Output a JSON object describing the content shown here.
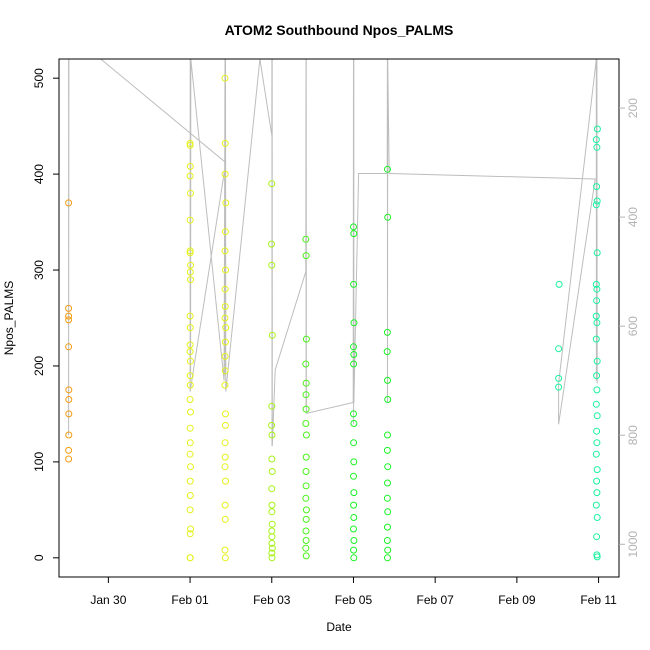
{
  "chart_data": {
    "type": "scatter",
    "title": "ATOM2 Southbound Npos_PALMS",
    "xlabel": "Date",
    "ylabel": "Npos_PALMS",
    "x_is_date": true,
    "xlim": [
      "2017-01-28T19:00",
      "2017-02-11T12:00"
    ],
    "ylim": [
      -20,
      520
    ],
    "x_ticks": [
      {
        "value": "2017-01-30",
        "label": "Jan 30"
      },
      {
        "value": "2017-02-01",
        "label": "Feb 01"
      },
      {
        "value": "2017-02-03",
        "label": "Feb 03"
      },
      {
        "value": "2017-02-05",
        "label": "Feb 05"
      },
      {
        "value": "2017-02-07",
        "label": "Feb 07"
      },
      {
        "value": "2017-02-09",
        "label": "Feb 09"
      },
      {
        "value": "2017-02-11",
        "label": "Feb 11"
      }
    ],
    "y_ticks": [
      0,
      100,
      200,
      300,
      400,
      500
    ],
    "secondary_axis": {
      "ylim": [
        1060,
        110
      ],
      "ticks": [
        200,
        400,
        600,
        800,
        1000
      ],
      "color": "#b3b3b3"
    },
    "series": [
      {
        "color": "#f39c12",
        "points": [
          [
            "2017-01-29T00:40",
            370
          ],
          [
            "2017-01-29T00:40",
            260
          ],
          [
            "2017-01-29T00:40",
            252
          ],
          [
            "2017-01-29T00:40",
            248
          ],
          [
            "2017-01-29T00:40",
            220
          ],
          [
            "2017-01-29T00:45",
            175
          ],
          [
            "2017-01-29T00:45",
            165
          ],
          [
            "2017-01-29T00:45",
            150
          ],
          [
            "2017-01-29T00:45",
            128
          ],
          [
            "2017-01-29T00:40",
            112
          ],
          [
            "2017-01-29T00:40",
            103
          ]
        ]
      },
      {
        "color": "#e4f21a",
        "points": [
          [
            "2017-02-01T00:00",
            432
          ],
          [
            "2017-02-01T00:05",
            430
          ],
          [
            "2017-02-01T00:10",
            408
          ],
          [
            "2017-02-01T00:00",
            398
          ],
          [
            "2017-02-01T00:15",
            380
          ],
          [
            "2017-02-01T00:05",
            352
          ],
          [
            "2017-02-01T00:10",
            320
          ],
          [
            "2017-02-01T00:00",
            318
          ],
          [
            "2017-02-01T00:20",
            305
          ],
          [
            "2017-02-01T00:10",
            298
          ],
          [
            "2017-02-01T00:15",
            290
          ],
          [
            "2017-02-01T00:00",
            252
          ],
          [
            "2017-02-01T00:10",
            240
          ],
          [
            "2017-02-01T00:05",
            222
          ],
          [
            "2017-02-01T00:00",
            215
          ],
          [
            "2017-02-01T00:15",
            205
          ],
          [
            "2017-02-01T00:05",
            190
          ],
          [
            "2017-02-01T00:10",
            180
          ],
          [
            "2017-02-01T00:00",
            165
          ],
          [
            "2017-02-01T00:15",
            152
          ],
          [
            "2017-02-01T00:05",
            135
          ],
          [
            "2017-02-01T00:10",
            120
          ],
          [
            "2017-02-01T00:00",
            108
          ],
          [
            "2017-02-01T00:15",
            95
          ],
          [
            "2017-02-01T00:05",
            80
          ],
          [
            "2017-02-01T00:10",
            65
          ],
          [
            "2017-02-01T00:00",
            50
          ],
          [
            "2017-02-01T00:15",
            30
          ],
          [
            "2017-02-01T00:05",
            25
          ],
          [
            "2017-02-01T00:00",
            0
          ],
          [
            "2017-02-01T00:10",
            0
          ],
          [
            "2017-02-01T20:30",
            500
          ],
          [
            "2017-02-01T20:40",
            432
          ],
          [
            "2017-02-01T20:35",
            400
          ],
          [
            "2017-02-01T21:00",
            370
          ],
          [
            "2017-02-01T20:45",
            340
          ],
          [
            "2017-02-01T20:30",
            320
          ],
          [
            "2017-02-01T20:50",
            300
          ],
          [
            "2017-02-01T20:35",
            280
          ],
          [
            "2017-02-01T20:40",
            262
          ],
          [
            "2017-02-01T20:30",
            250
          ],
          [
            "2017-02-01T20:55",
            240
          ],
          [
            "2017-02-01T20:45",
            225
          ],
          [
            "2017-02-01T20:35",
            210
          ],
          [
            "2017-02-01T20:40",
            195
          ],
          [
            "2017-02-01T20:30",
            180
          ],
          [
            "2017-02-01T20:50",
            150
          ],
          [
            "2017-02-01T20:45",
            138
          ],
          [
            "2017-02-01T20:35",
            120
          ],
          [
            "2017-02-01T20:40",
            105
          ],
          [
            "2017-02-01T20:30",
            95
          ],
          [
            "2017-02-01T20:50",
            80
          ],
          [
            "2017-02-01T20:35",
            55
          ],
          [
            "2017-02-01T20:40",
            40
          ],
          [
            "2017-02-01T20:30",
            8
          ],
          [
            "2017-02-01T20:45",
            0
          ]
        ]
      },
      {
        "color": "#a6f21a",
        "points": [
          [
            "2017-02-03T00:00",
            390
          ],
          [
            "2017-02-02T23:50",
            327
          ],
          [
            "2017-02-03T00:00",
            305
          ],
          [
            "2017-02-03T00:20",
            232
          ],
          [
            "2017-02-03T00:00",
            158
          ],
          [
            "2017-02-02T23:55",
            138
          ],
          [
            "2017-02-03T00:10",
            128
          ],
          [
            "2017-02-03T00:05",
            103
          ],
          [
            "2017-02-03T00:15",
            90
          ],
          [
            "2017-02-03T00:00",
            72
          ],
          [
            "2017-02-03T00:10",
            55
          ],
          [
            "2017-02-03T00:05",
            48
          ],
          [
            "2017-02-03T00:15",
            35
          ],
          [
            "2017-02-03T00:00",
            28
          ],
          [
            "2017-02-03T00:10",
            22
          ],
          [
            "2017-02-03T00:05",
            15
          ],
          [
            "2017-02-03T00:20",
            10
          ],
          [
            "2017-02-03T00:00",
            5
          ],
          [
            "2017-02-03T00:10",
            0
          ]
        ]
      },
      {
        "color": "#4cf21a",
        "points": [
          [
            "2017-02-03T20:00",
            332
          ],
          [
            "2017-02-03T20:10",
            315
          ],
          [
            "2017-02-03T20:20",
            228
          ],
          [
            "2017-02-03T20:00",
            202
          ],
          [
            "2017-02-03T20:15",
            182
          ],
          [
            "2017-02-03T20:05",
            170
          ],
          [
            "2017-02-03T20:10",
            155
          ],
          [
            "2017-02-03T20:00",
            140
          ],
          [
            "2017-02-03T20:20",
            128
          ],
          [
            "2017-02-03T20:15",
            105
          ],
          [
            "2017-02-03T20:05",
            90
          ],
          [
            "2017-02-03T20:10",
            75
          ],
          [
            "2017-02-03T20:00",
            62
          ],
          [
            "2017-02-03T20:20",
            50
          ],
          [
            "2017-02-03T20:15",
            40
          ],
          [
            "2017-02-03T20:05",
            28
          ],
          [
            "2017-02-03T20:10",
            18
          ],
          [
            "2017-02-03T20:00",
            10
          ],
          [
            "2017-02-03T20:15",
            2
          ]
        ]
      },
      {
        "color": "#1af226",
        "points": [
          [
            "2017-02-05T00:00",
            345
          ],
          [
            "2017-02-05T00:10",
            338
          ],
          [
            "2017-02-05T00:05",
            285
          ],
          [
            "2017-02-05T00:20",
            245
          ],
          [
            "2017-02-05T00:00",
            220
          ],
          [
            "2017-02-05T00:10",
            212
          ],
          [
            "2017-02-05T00:05",
            202
          ],
          [
            "2017-02-05T00:00",
            150
          ],
          [
            "2017-02-05T00:15",
            140
          ],
          [
            "2017-02-05T00:05",
            120
          ],
          [
            "2017-02-05T00:10",
            100
          ],
          [
            "2017-02-05T00:00",
            85
          ],
          [
            "2017-02-05T00:15",
            68
          ],
          [
            "2017-02-05T00:05",
            55
          ],
          [
            "2017-02-05T00:10",
            42
          ],
          [
            "2017-02-05T00:00",
            30
          ],
          [
            "2017-02-05T00:15",
            18
          ],
          [
            "2017-02-05T00:05",
            8
          ],
          [
            "2017-02-05T00:10",
            0
          ],
          [
            "2017-02-05T20:00",
            405
          ],
          [
            "2017-02-05T20:05",
            355
          ],
          [
            "2017-02-05T19:55",
            235
          ],
          [
            "2017-02-05T19:50",
            215
          ],
          [
            "2017-02-05T20:00",
            185
          ],
          [
            "2017-02-05T20:05",
            165
          ],
          [
            "2017-02-05T20:00",
            128
          ],
          [
            "2017-02-05T19:55",
            112
          ],
          [
            "2017-02-05T20:05",
            95
          ],
          [
            "2017-02-05T20:00",
            78
          ],
          [
            "2017-02-05T19:55",
            62
          ],
          [
            "2017-02-05T20:05",
            48
          ],
          [
            "2017-02-05T20:00",
            32
          ],
          [
            "2017-02-05T19:55",
            18
          ],
          [
            "2017-02-05T20:05",
            8
          ],
          [
            "2017-02-05T20:00",
            0
          ]
        ]
      },
      {
        "color": "#1af2a0",
        "points": [
          [
            "2017-02-10T00:50",
            285
          ],
          [
            "2017-02-10T00:30",
            218
          ],
          [
            "2017-02-10T00:30",
            187
          ],
          [
            "2017-02-10T00:30",
            178
          ],
          [
            "2017-02-10T22:40",
            436
          ],
          [
            "2017-02-10T23:20",
            447
          ],
          [
            "2017-02-10T23:00",
            428
          ],
          [
            "2017-02-10T22:50",
            387
          ],
          [
            "2017-02-10T23:10",
            372
          ],
          [
            "2017-02-10T22:40",
            368
          ],
          [
            "2017-02-10T23:10",
            318
          ],
          [
            "2017-02-10T22:40",
            285
          ],
          [
            "2017-02-10T23:00",
            280
          ],
          [
            "2017-02-10T22:50",
            268
          ],
          [
            "2017-02-10T22:40",
            252
          ],
          [
            "2017-02-10T23:00",
            245
          ],
          [
            "2017-02-10T22:40",
            228
          ],
          [
            "2017-02-10T23:10",
            205
          ],
          [
            "2017-02-10T22:50",
            190
          ],
          [
            "2017-02-10T23:00",
            175
          ],
          [
            "2017-02-10T22:40",
            160
          ],
          [
            "2017-02-10T23:10",
            148
          ],
          [
            "2017-02-10T22:50",
            132
          ],
          [
            "2017-02-10T23:00",
            120
          ],
          [
            "2017-02-10T22:40",
            108
          ],
          [
            "2017-02-10T23:10",
            92
          ],
          [
            "2017-02-10T22:50",
            80
          ],
          [
            "2017-02-10T23:00",
            68
          ],
          [
            "2017-02-10T22:40",
            55
          ],
          [
            "2017-02-10T23:10",
            42
          ],
          [
            "2017-02-10T22:50",
            22
          ],
          [
            "2017-02-10T23:00",
            3
          ],
          [
            "2017-02-10T23:10",
            1
          ]
        ]
      }
    ],
    "track_line": {
      "color": "#bdbdbd",
      "axis": "secondary",
      "points": [
        [
          "2017-01-29T00:40",
          110
        ],
        [
          "2017-01-29T00:40",
          800
        ],
        [
          "2017-01-29T00:50",
          110
        ],
        [
          "2017-01-29T19:30",
          110
        ],
        [
          "2017-02-01T21:00",
          300
        ],
        [
          "2017-02-01T00:00",
          720
        ],
        [
          "2017-02-01T00:05",
          110
        ],
        [
          "2017-02-01T00:10",
          700
        ],
        [
          "2017-02-01T00:15",
          110
        ],
        [
          "2017-02-01T00:20",
          690
        ],
        [
          "2017-02-01T00:25",
          110
        ],
        [
          "2017-02-01T20:00",
          700
        ],
        [
          "2017-02-01T20:30",
          110
        ],
        [
          "2017-02-01T20:40",
          690
        ],
        [
          "2017-02-01T20:50",
          110
        ],
        [
          "2017-02-01T21:00",
          720
        ],
        [
          "2017-02-02T17:00",
          110
        ],
        [
          "2017-02-03T00:00",
          250
        ],
        [
          "2017-02-03T00:05",
          110
        ],
        [
          "2017-02-03T00:10",
          820
        ],
        [
          "2017-02-03T00:15",
          110
        ],
        [
          "2017-02-03T00:20",
          820
        ],
        [
          "2017-02-03T02:00",
          680
        ],
        [
          "2017-02-03T20:00",
          500
        ],
        [
          "2017-02-03T20:05",
          110
        ],
        [
          "2017-02-03T20:10",
          750
        ],
        [
          "2017-02-03T20:15",
          110
        ],
        [
          "2017-02-03T20:20",
          760
        ],
        [
          "2017-02-04T23:50",
          740
        ],
        [
          "2017-02-05T00:00",
          110
        ],
        [
          "2017-02-05T00:05",
          780
        ],
        [
          "2017-02-05T00:10",
          110
        ],
        [
          "2017-02-05T00:15",
          740
        ],
        [
          "2017-02-05T03:00",
          320
        ],
        [
          "2017-02-05T19:50",
          320
        ],
        [
          "2017-02-05T19:55",
          110
        ],
        [
          "2017-02-05T20:00",
          740
        ],
        [
          "2017-02-05T20:05",
          110
        ],
        [
          "2017-02-05T21:00",
          320
        ],
        [
          "2017-02-10T22:00",
          330
        ],
        [
          "2017-02-10T00:30",
          780
        ],
        [
          "2017-02-10T00:30",
          705
        ],
        [
          "2017-02-10T22:40",
          110
        ],
        [
          "2017-02-10T22:45",
          700
        ],
        [
          "2017-02-10T23:00",
          110
        ],
        [
          "2017-02-10T23:10",
          705
        ]
      ]
    }
  }
}
